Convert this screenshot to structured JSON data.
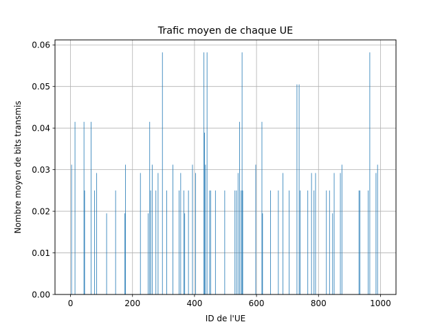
{
  "chart_data": {
    "type": "bar",
    "title": "Trafic moyen de chaque UE",
    "xlabel": "ID de l'UE",
    "ylabel": "Nombre moyen de bits transmis",
    "xlim": [
      -50,
      1050
    ],
    "ylim": [
      0,
      0.0612
    ],
    "xticks": [
      "0",
      "200",
      "400",
      "600",
      "800",
      "1000"
    ],
    "yticks": [
      "0.00",
      "0.01",
      "0.02",
      "0.03",
      "0.04",
      "0.05",
      "0.06"
    ],
    "grid": true,
    "bar_color": "#1f77b4",
    "x": [
      3,
      14,
      43,
      45,
      66,
      77,
      84,
      116,
      145,
      175,
      177,
      225,
      250,
      255,
      258,
      263,
      275,
      282,
      296,
      310,
      330,
      350,
      355,
      365,
      368,
      380,
      393,
      403,
      430,
      432,
      435,
      440,
      448,
      452,
      467,
      497,
      530,
      535,
      540,
      545,
      550,
      553,
      555,
      597,
      617,
      619,
      645,
      670,
      685,
      705,
      730,
      737,
      740,
      765,
      777,
      785,
      790,
      825,
      835,
      845,
      850,
      870,
      875,
      930,
      933,
      960,
      965,
      985,
      990
    ],
    "values": [
      0.0312,
      0.0415,
      0.0415,
      0.025,
      0.0415,
      0.025,
      0.0292,
      0.0195,
      0.025,
      0.0195,
      0.0312,
      0.0292,
      0.0195,
      0.0415,
      0.025,
      0.0312,
      0.025,
      0.0292,
      0.0582,
      0.025,
      0.0312,
      0.025,
      0.0292,
      0.025,
      0.0195,
      0.025,
      0.0312,
      0.0292,
      0.0582,
      0.0389,
      0.0312,
      0.0582,
      0.025,
      0.025,
      0.025,
      0.025,
      0.025,
      0.025,
      0.0292,
      0.0415,
      0.025,
      0.0582,
      0.025,
      0.0312,
      0.0415,
      0.0195,
      0.025,
      0.025,
      0.0292,
      0.025,
      0.0505,
      0.0505,
      0.025,
      0.025,
      0.0292,
      0.025,
      0.0292,
      0.025,
      0.025,
      0.0195,
      0.0292,
      0.0292,
      0.0312,
      0.025,
      0.025,
      0.025,
      0.0582,
      0.0292,
      0.0312
    ]
  }
}
